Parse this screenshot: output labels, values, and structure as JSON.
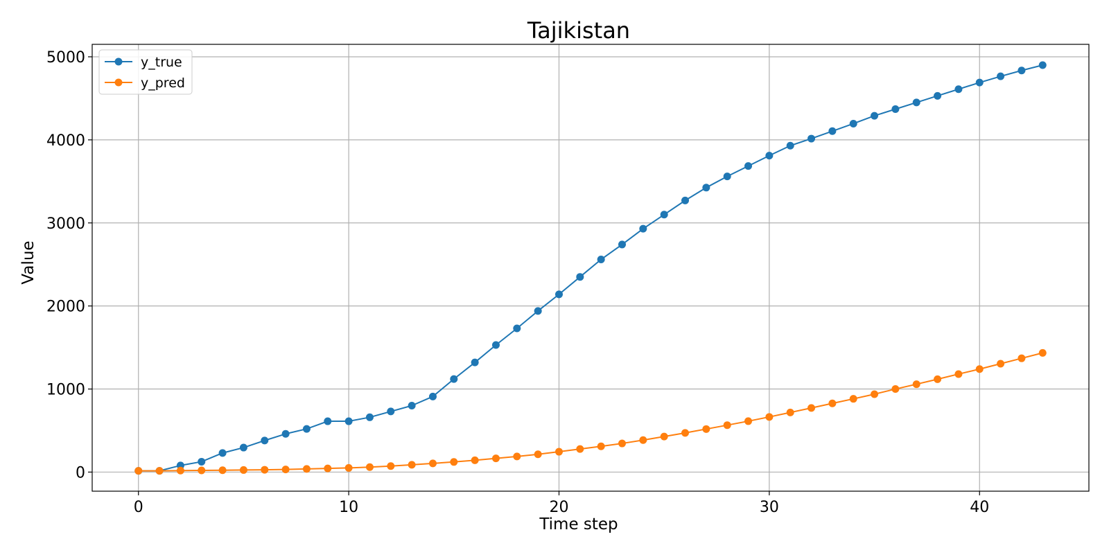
{
  "chart_data": {
    "type": "line",
    "title": "Tajikistan",
    "xlabel": "Time step",
    "ylabel": "Value",
    "xlim": [
      -2.2,
      45.2
    ],
    "ylim": [
      -230,
      5150
    ],
    "x_ticks": [
      0,
      10,
      20,
      30,
      40
    ],
    "y_ticks": [
      0,
      1000,
      2000,
      3000,
      4000,
      5000
    ],
    "grid": true,
    "legend": "top-left",
    "x": [
      0,
      1,
      2,
      3,
      4,
      5,
      6,
      7,
      8,
      9,
      10,
      11,
      12,
      13,
      14,
      15,
      16,
      17,
      18,
      19,
      20,
      21,
      22,
      23,
      24,
      25,
      26,
      27,
      28,
      29,
      30,
      31,
      32,
      33,
      34,
      35,
      36,
      37,
      38,
      39,
      40,
      41,
      42,
      43
    ],
    "series": [
      {
        "name": "y_true",
        "color": "#1f77b4",
        "marker": "circle",
        "values": [
          15,
          15,
          80,
          125,
          230,
          295,
          380,
          460,
          520,
          612,
          612,
          660,
          730,
          800,
          910,
          1120,
          1320,
          1530,
          1730,
          1940,
          2140,
          2350,
          2560,
          2740,
          2930,
          3100,
          3270,
          3425,
          3560,
          3685,
          3810,
          3930,
          4015,
          4105,
          4195,
          4290,
          4370,
          4450,
          4530,
          4610,
          4690,
          4765,
          4835,
          4900
        ]
      },
      {
        "name": "y_pred",
        "color": "#ff7f0e",
        "marker": "circle",
        "values": [
          15,
          15,
          18,
          20,
          22,
          25,
          28,
          32,
          38,
          44,
          50,
          60,
          72,
          88,
          105,
          122,
          142,
          165,
          188,
          214,
          245,
          278,
          310,
          345,
          385,
          428,
          472,
          518,
          565,
          613,
          664,
          718,
          772,
          827,
          882,
          938,
          1000,
          1058,
          1118,
          1180,
          1240,
          1305,
          1370,
          1435
        ]
      }
    ]
  }
}
